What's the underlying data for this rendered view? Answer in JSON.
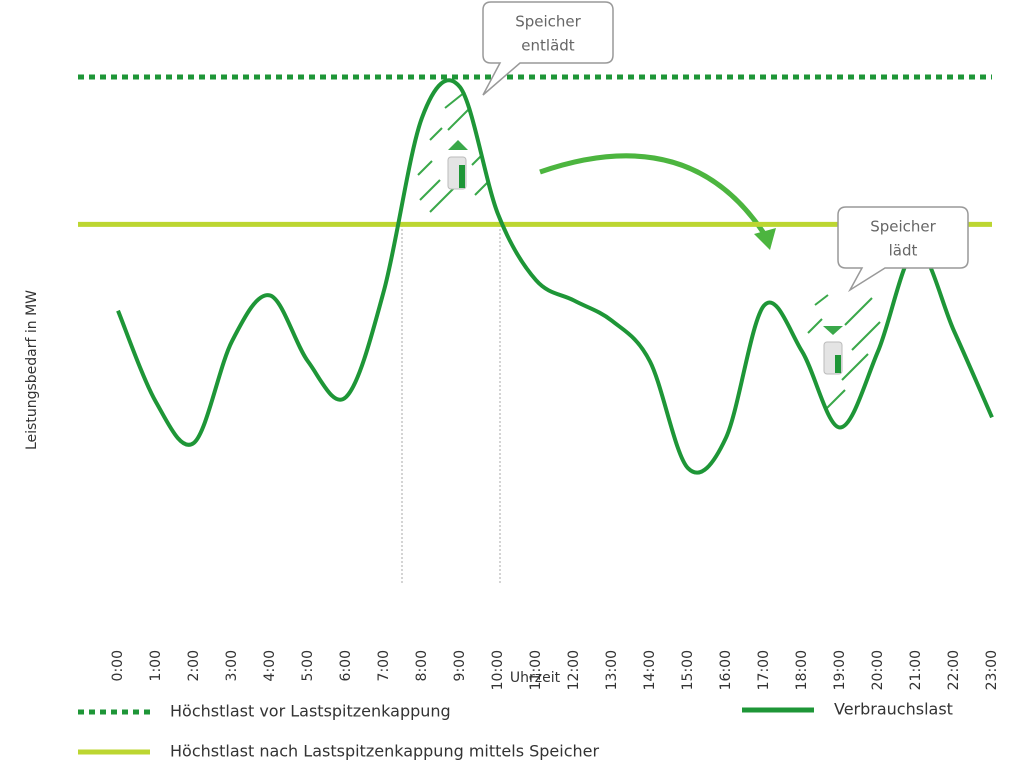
{
  "chart_data": {
    "type": "line",
    "y_label": "Leistungsbedarf in MW",
    "x_label": "Uhrzeit",
    "categories": [
      "0:00",
      "1:00",
      "2:00",
      "3:00",
      "4:00",
      "5:00",
      "6:00",
      "7:00",
      "8:00",
      "9:00",
      "10:00",
      "11:00",
      "12:00",
      "13:00",
      "14:00",
      "15:00",
      "16:00",
      "17:00",
      "18:00",
      "19:00",
      "20:00",
      "21:00",
      "22:00",
      "23:00"
    ],
    "ylim": [
      0,
      100
    ],
    "series": [
      {
        "name": "Verbrauchslast",
        "color": "#1e9637",
        "values": [
          54,
          36,
          28,
          48,
          57,
          44,
          37,
          58,
          92,
          98,
          73,
          60,
          56,
          52,
          44,
          23,
          29,
          55,
          46,
          31,
          46,
          66,
          50,
          33
        ]
      }
    ],
    "reference_lines": [
      {
        "name": "Höchstlast vor Lastspitzenkappung",
        "color": "#1e9637",
        "value": 100,
        "style": "dotted"
      },
      {
        "name": "Höchstlast nach Lastspitzenkappung mittels Speicher",
        "color": "#bcd631",
        "value": 71,
        "style": "solid"
      }
    ],
    "annotations": [
      {
        "lines": [
          "Speicher",
          "entlädt"
        ]
      },
      {
        "lines": [
          "Speicher",
          "lädt"
        ]
      }
    ]
  }
}
